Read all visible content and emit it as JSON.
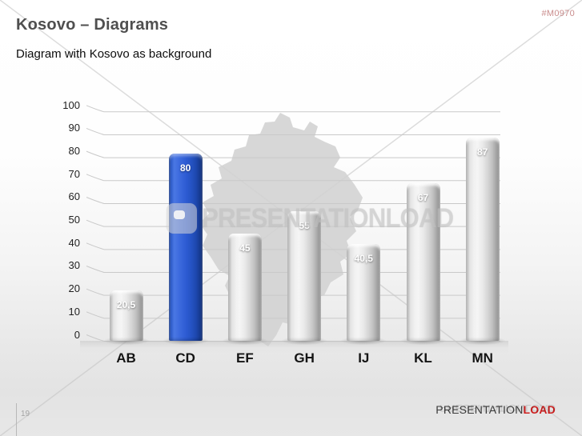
{
  "slide": {
    "title": "Kosovo – Diagrams",
    "subtitle": "Diagram with Kosovo as background",
    "product_code": "#M0970",
    "page_number": "19",
    "brand_part1": "PRESENTATION",
    "brand_part2": "LOAD",
    "watermark_text": "PRESENTATIONLOAD"
  },
  "colors": {
    "highlight_bar": "#2d5bc8",
    "gray_bar": "#c9c9c9",
    "brand_red": "#cc1f1f",
    "title_gray": "#4f4f4f",
    "gridline": "#c9c9c9",
    "map_silhouette": "#d2d2d2",
    "product_code_red": "#c98c8c"
  },
  "chart_data": {
    "type": "bar",
    "title": "",
    "xlabel": "",
    "ylabel": "",
    "categories": [
      "AB",
      "CD",
      "EF",
      "GH",
      "IJ",
      "KL",
      "MN"
    ],
    "values": [
      20.5,
      80,
      45,
      55,
      40.5,
      67,
      87
    ],
    "value_labels": [
      "20,5",
      "80",
      "45",
      "55",
      "40,5",
      "67",
      "87"
    ],
    "highlight_index": 1,
    "ylim": [
      0,
      100
    ],
    "ytick_step": 10,
    "ytick_labels": [
      "0",
      "10",
      "20",
      "30",
      "40",
      "50",
      "60",
      "70",
      "80",
      "90",
      "100"
    ],
    "grid": true,
    "legend": false,
    "background": "Kosovo map silhouette"
  }
}
